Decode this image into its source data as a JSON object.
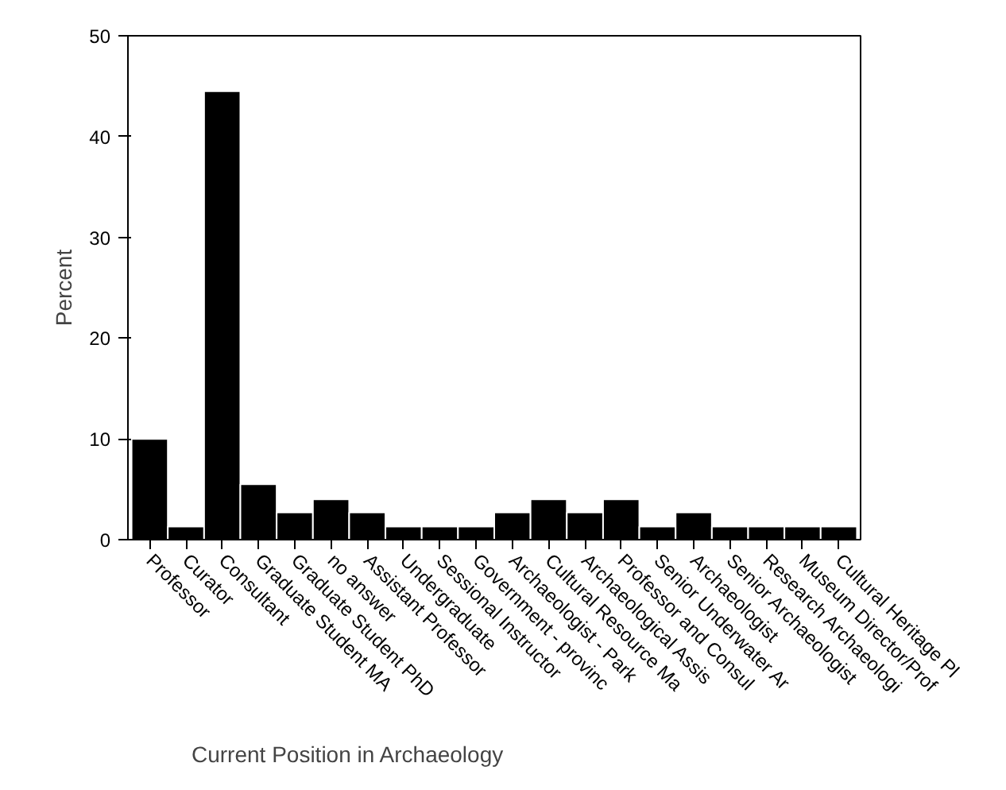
{
  "chart_data": {
    "type": "bar",
    "xlabel": "Current Position in Archaeology",
    "ylabel": "Percent",
    "categories": [
      "Professor",
      "Curator",
      "Consultant",
      "Graduate Student MA",
      "Graduate Student PhD",
      "no answer",
      "Assistant Professor",
      "Undergraduate",
      "Sessional Instructor",
      "Government - provinc",
      "Archaeologist - Park",
      "Cultural Resource Ma",
      "Archaeological Assis",
      "Professor and Consul",
      "Senior Underwater Ar",
      "Archaeologist",
      "Senior Archaeologist",
      "Research Archaeologi",
      "Museum Director/Prof",
      "Cultural Heritage Pl"
    ],
    "values": [
      10,
      1.3,
      44.5,
      5.5,
      2.7,
      4,
      2.7,
      1.3,
      1.3,
      1.3,
      2.7,
      4,
      2.7,
      4,
      1.3,
      2.7,
      1.3,
      1.3,
      1.3,
      1.3
    ],
    "color": "#000000",
    "ylim": [
      0,
      50
    ],
    "yticks": [
      0,
      10,
      20,
      30,
      40,
      50
    ],
    "grid": false
  }
}
